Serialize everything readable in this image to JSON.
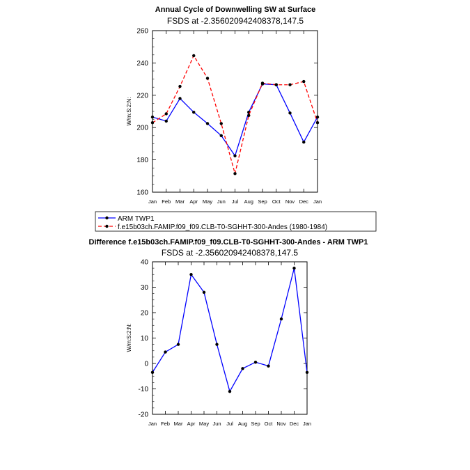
{
  "chart_data": [
    {
      "type": "line",
      "title": "Annual Cycle of Downwelling SW at Surface",
      "subtitle": "FSDS at -2.356020942408378,147.5",
      "ylabel": "W/m:S:2:N:",
      "ylim": [
        160,
        260
      ],
      "yticks": [
        160,
        180,
        200,
        220,
        240,
        260
      ],
      "categories": [
        "Jan",
        "Feb",
        "Mar",
        "Apr",
        "May",
        "Jun",
        "Jul",
        "Aug",
        "Sep",
        "Oct",
        "Nov",
        "Dec",
        "Jan"
      ],
      "series": [
        {
          "name": "ARM TWP1",
          "color": "#0000ff",
          "dash": "solid",
          "values": [
            206.5,
            204,
            218,
            209.5,
            202.5,
            195,
            182.5,
            209.5,
            227,
            226.5,
            209,
            191,
            206.5
          ]
        },
        {
          "name": "f.e15b03ch.FAMIP.f09_f09.CLB-T0-SGHHT-300-Andes (1980-1984)",
          "color": "#ff0000",
          "dash": "dashed",
          "values": [
            203,
            208.5,
            225.5,
            244.5,
            230.5,
            202.5,
            171.5,
            207.5,
            227.5,
            226.5,
            226.5,
            228.5,
            203
          ]
        }
      ]
    },
    {
      "type": "line",
      "title": "Difference f.e15b03ch.FAMIP.f09_f09.CLB-T0-SGHHT-300-Andes - ARM TWP1",
      "subtitle": "FSDS at -2.356020942408378,147.5",
      "ylabel": "W/m:S:2:N:",
      "ylim": [
        -20,
        40
      ],
      "yticks": [
        -20,
        -10,
        0,
        10,
        20,
        30,
        40
      ],
      "categories": [
        "Jan",
        "Feb",
        "Mar",
        "Apr",
        "May",
        "Jun",
        "Jul",
        "Aug",
        "Sep",
        "Oct",
        "Nov",
        "Dec",
        "Jan"
      ],
      "series": [
        {
          "color": "#0000ff",
          "dash": "solid",
          "values": [
            -3.5,
            4.5,
            7.5,
            35,
            28,
            7.5,
            -11,
            -2,
            0.5,
            -1,
            17.5,
            37.5,
            -3.5
          ]
        }
      ]
    }
  ]
}
